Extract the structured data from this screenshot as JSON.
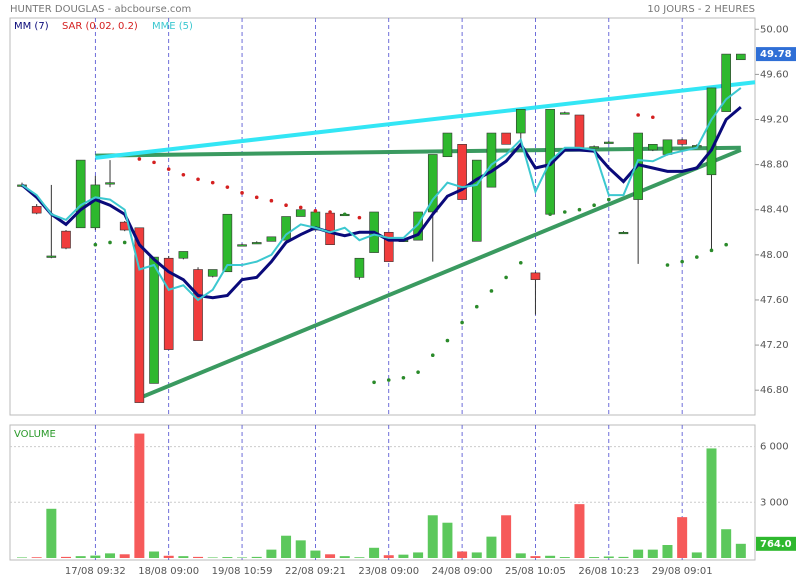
{
  "header": {
    "left": "HUNTER DOUGLAS - abcbourse.com",
    "right": "10 JOURS - 2 HEURES"
  },
  "chart_data": [
    {
      "type": "candlestick",
      "open": [
        48.62,
        48.43,
        47.99,
        48.21,
        48.24,
        48.24,
        48.64,
        48.29,
        48.24,
        46.86,
        47.97,
        47.97,
        47.87,
        47.81,
        47.85,
        48.09,
        48.11,
        48.12,
        48.13,
        48.34,
        48.22,
        48.37,
        48.36,
        47.8,
        48.02,
        48.2,
        48.13,
        48.13,
        48.38,
        48.87,
        48.98,
        48.12,
        48.6,
        49.08,
        49.08,
        47.84,
        48.36,
        49.26,
        49.24,
        48.96,
        49.0,
        48.2,
        48.49,
        48.93,
        48.89,
        49.02,
        48.96,
        48.71,
        49.27,
        49.73
      ],
      "high": [
        48.64,
        48.45,
        48.62,
        48.22,
        48.84,
        48.7,
        48.84,
        48.3,
        48.24,
        47.98,
        47.99,
        48.03,
        47.89,
        47.87,
        48.36,
        48.1,
        48.12,
        48.16,
        48.34,
        48.4,
        48.38,
        48.38,
        48.37,
        47.97,
        48.38,
        48.2,
        48.14,
        48.38,
        48.89,
        49.08,
        48.98,
        48.84,
        49.08,
        49.08,
        49.29,
        47.85,
        49.29,
        49.27,
        49.24,
        48.97,
        49.01,
        48.21,
        49.08,
        48.98,
        49.02,
        49.03,
        48.98,
        49.48,
        49.78,
        49.78
      ],
      "low": [
        48.6,
        48.36,
        47.97,
        48.05,
        48.24,
        48.22,
        48.6,
        48.21,
        46.69,
        46.86,
        47.16,
        47.96,
        47.24,
        47.8,
        47.85,
        48.08,
        48.1,
        48.12,
        48.13,
        48.34,
        48.22,
        48.09,
        48.35,
        47.78,
        48.02,
        47.94,
        48.12,
        48.13,
        47.94,
        48.87,
        48.49,
        48.12,
        48.6,
        48.98,
        48.95,
        47.47,
        48.36,
        49.25,
        48.93,
        48.95,
        48.99,
        48.19,
        47.92,
        48.92,
        48.88,
        48.97,
        48.95,
        48.04,
        49.27,
        49.73
      ],
      "close": [
        48.62,
        48.37,
        47.99,
        48.06,
        48.84,
        48.62,
        48.64,
        48.22,
        46.69,
        47.98,
        47.16,
        48.03,
        47.24,
        47.87,
        48.36,
        48.09,
        48.11,
        48.16,
        48.34,
        48.4,
        48.38,
        48.09,
        48.36,
        47.97,
        48.38,
        47.94,
        48.13,
        48.38,
        48.89,
        49.08,
        48.49,
        48.84,
        49.08,
        48.98,
        49.29,
        47.78,
        49.29,
        49.26,
        48.93,
        48.96,
        49.0,
        48.2,
        49.08,
        48.98,
        49.02,
        48.98,
        48.97,
        49.48,
        49.78,
        49.78
      ],
      "up_color": "#2eb82e",
      "down_color": "#f03c3c",
      "series": [
        {
          "name": "MM (7)",
          "color": "#0a0a7a",
          "style": "line",
          "values": [
            48.62,
            48.51,
            48.36,
            48.27,
            48.4,
            48.49,
            48.44,
            48.36,
            48.09,
            47.96,
            47.85,
            47.78,
            47.64,
            47.62,
            47.64,
            47.78,
            47.8,
            47.94,
            48.11,
            48.18,
            48.24,
            48.2,
            48.17,
            48.2,
            48.2,
            48.13,
            48.13,
            48.18,
            48.36,
            48.52,
            48.58,
            48.67,
            48.74,
            48.83,
            48.98,
            48.77,
            48.8,
            48.93,
            48.93,
            48.92,
            48.77,
            48.65,
            48.8,
            48.77,
            48.74,
            48.74,
            48.77,
            48.93,
            49.2,
            49.31
          ]
        },
        {
          "name": "SAR (0.02, 0.2)",
          "color": "#d42020",
          "below_color": "#2a8a2a",
          "style": "dots",
          "values": [
            null,
            null,
            null,
            null,
            null,
            48.09,
            48.11,
            48.11,
            48.85,
            48.82,
            48.76,
            48.71,
            48.67,
            48.64,
            48.6,
            48.55,
            48.51,
            48.48,
            48.44,
            48.42,
            48.39,
            48.38,
            48.36,
            48.33,
            46.87,
            46.89,
            46.91,
            46.96,
            47.11,
            47.24,
            47.4,
            47.54,
            47.68,
            47.8,
            47.93,
            null,
            48.36,
            48.38,
            48.4,
            48.44,
            48.49,
            null,
            49.24,
            49.22,
            47.91,
            47.94,
            47.98,
            48.04,
            48.09,
            null
          ]
        },
        {
          "name": "MME (5)",
          "color": "#3cc8d0",
          "style": "line",
          "values": [
            48.62,
            48.53,
            48.36,
            48.31,
            48.44,
            48.51,
            48.49,
            48.4,
            47.87,
            47.91,
            47.69,
            47.73,
            47.6,
            47.69,
            47.91,
            47.91,
            47.94,
            48.0,
            48.18,
            48.27,
            48.24,
            48.2,
            48.24,
            48.13,
            48.18,
            48.15,
            48.15,
            48.27,
            48.49,
            48.64,
            48.6,
            48.62,
            48.8,
            48.89,
            49.02,
            48.56,
            48.83,
            48.95,
            48.95,
            48.93,
            48.53,
            48.53,
            48.84,
            48.83,
            48.89,
            48.92,
            48.95,
            49.2,
            49.38,
            49.48
          ]
        }
      ],
      "trendlines": [
        {
          "color": "#3a9a60",
          "x": [
            5,
            49
          ],
          "y": [
            48.88,
            48.95
          ]
        },
        {
          "color": "#3a9a60",
          "x": [
            8,
            49
          ],
          "y": [
            46.73,
            48.93
          ]
        },
        {
          "color": "#33e6f5",
          "x": [
            5,
            50
          ],
          "y": [
            48.86,
            49.53
          ]
        }
      ],
      "ylim": [
        46.58,
        50.1
      ],
      "yticks": [
        {
          "value": 46.8,
          "label": "46.80"
        },
        {
          "value": 47.2,
          "label": "47.20"
        },
        {
          "value": 47.6,
          "label": "47.60"
        },
        {
          "value": 48,
          "label": "48.00"
        },
        {
          "value": 48.4,
          "label": "48.40"
        },
        {
          "value": 48.8,
          "label": "48.80"
        },
        {
          "value": 49.2,
          "label": "49.20"
        },
        {
          "value": 49.6,
          "label": "49.60"
        },
        {
          "value": 50,
          "label": "50.00"
        }
      ],
      "last_color": "#2f6fd6"
    },
    {
      "type": "bar",
      "title": "VOLUME",
      "categories": [
        null,
        null,
        null,
        null,
        null,
        "17/08 09:32",
        null,
        null,
        null,
        null,
        "18/08 09:00",
        null,
        null,
        null,
        null,
        "19/08 10:59",
        null,
        null,
        null,
        null,
        "22/08 09:21",
        null,
        null,
        null,
        null,
        "23/08 09:00",
        null,
        null,
        null,
        null,
        "24/08 09:00",
        null,
        null,
        null,
        null,
        "25/08 10:05",
        null,
        null,
        null,
        null,
        "26/08 10:23",
        null,
        null,
        null,
        null,
        "29/08 09:01",
        null,
        null,
        null,
        null
      ],
      "values": [
        30,
        40,
        2650,
        60,
        100,
        130,
        250,
        200,
        6700,
        350,
        120,
        100,
        60,
        30,
        50,
        30,
        60,
        450,
        1200,
        950,
        400,
        200,
        100,
        40,
        550,
        150,
        180,
        300,
        2300,
        1900,
        350,
        300,
        1150,
        2300,
        250,
        100,
        120,
        50,
        2900,
        50,
        80,
        60,
        450,
        450,
        700,
        2200,
        300,
        5900,
        1550,
        764
      ],
      "last_label": "764.0",
      "last_color": "#2eb82e",
      "ylim": [
        0,
        7000
      ],
      "yticks": [
        {
          "value": 3000,
          "label": "3 000"
        },
        {
          "value": 6000,
          "label": "6 000"
        }
      ]
    }
  ]
}
